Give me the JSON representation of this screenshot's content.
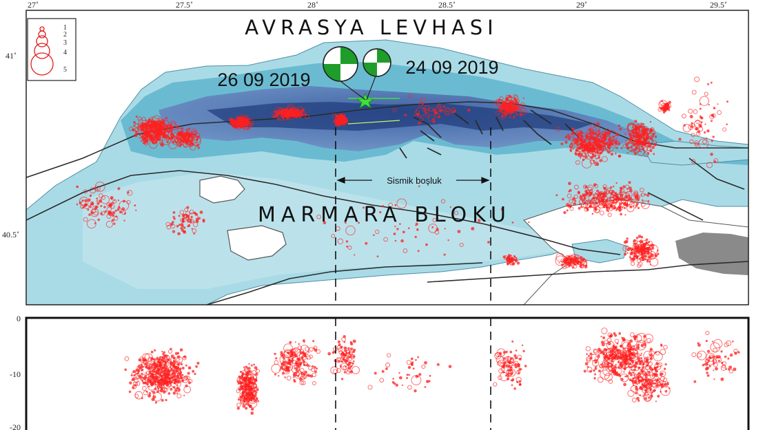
{
  "map": {
    "plate_label": "AVRASYA LEVHASI",
    "block_label": "MARMARA BLOKU",
    "gap_label": "Sismik boşluk",
    "event_dates": [
      "26 09 2019",
      "24 09 2019"
    ],
    "lon_ticks": [
      "27˚",
      "27.5˚",
      "28˚",
      "28.5˚",
      "29˚",
      "29.5˚"
    ],
    "lat_ticks": [
      "41˚",
      "40.5˚"
    ],
    "legend_labels": [
      "1",
      "2",
      "3",
      "4",
      "5"
    ],
    "colors": {
      "sea_light": "#a9dbe6",
      "sea_deep": "#2e4f93",
      "seismic_event": "#ff2020",
      "focal_mechanism": "#1f9d2a",
      "epicenter_star": "#3fe33f",
      "land": "#ffffff"
    }
  },
  "depth_section": {
    "y_ticks": [
      "0",
      "-10",
      "-20"
    ]
  }
}
